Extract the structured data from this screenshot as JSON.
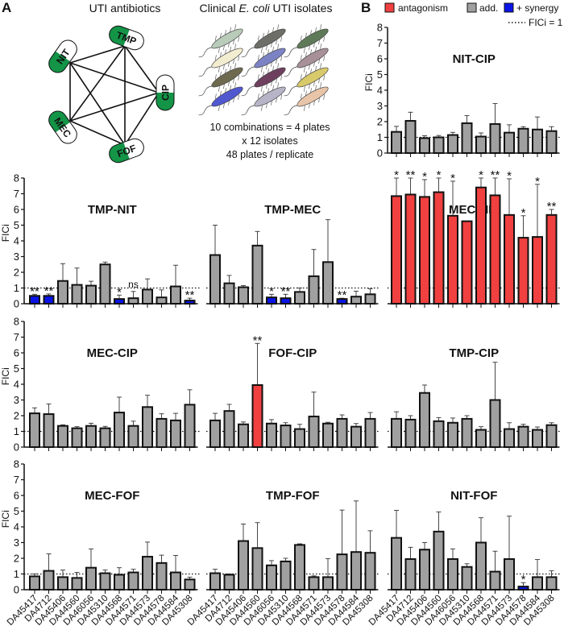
{
  "panel_a": {
    "label": "A",
    "title_antibiotics": "UTI antibiotics",
    "title_isolates_prefix": "Clinical ",
    "title_isolates_italic": "E. coli",
    "title_isolates_suffix": " UTI isolates",
    "antibiotics": [
      "TMP",
      "NIT",
      "CIP",
      "MEC",
      "FOF"
    ],
    "isolate_colors": [
      "#b9cbb9",
      "#6e6e68",
      "#5f7a58",
      "#f2edd0",
      "#7c83c4",
      "#a89098",
      "#6e6a4f",
      "#6e3f5e",
      "#d8c96b",
      "#5058d0",
      "#b8b4c8",
      "#e8c4a8"
    ],
    "plate_lines": [
      "10 combinations = 4 plates",
      "x 12 isolates",
      "48 plates / replicate"
    ],
    "pill_color": "#139447"
  },
  "panel_b": {
    "label": "B"
  },
  "legend": {
    "items": [
      {
        "label": "antagonism",
        "color": "#f04040"
      },
      {
        "label": "add.",
        "color": "#a0a0a0"
      },
      {
        "label": "+ synergy",
        "color": "#0a14e6"
      }
    ],
    "line_label": "FICi = 1"
  },
  "ylabel": "FICi",
  "yticks": [
    "0",
    "1",
    "2",
    "3",
    "4",
    "5",
    "6",
    "7",
    "8"
  ],
  "isolates": [
    "DA45417",
    "DA4712",
    "DA45406",
    "DA44560",
    "DA46056",
    "DA45310",
    "DA44568",
    "DA44571",
    "DA44573",
    "DA44578",
    "DA44584",
    "DA45308"
  ],
  "chart_data": [
    {
      "type": "bar",
      "title": "NIT-CIP",
      "ylim": [
        0,
        8
      ],
      "ylabel": "FICi",
      "values": [
        1.35,
        2.05,
        0.95,
        1.0,
        1.15,
        1.9,
        1.05,
        1.85,
        1.3,
        1.55,
        1.5,
        1.4
      ],
      "error_upper": [
        1.7,
        2.6,
        1.1,
        1.12,
        1.32,
        2.38,
        1.28,
        3.15,
        1.8,
        1.68,
        2.3,
        1.68
      ],
      "class": [
        "a",
        "a",
        "a",
        "a",
        "a",
        "a",
        "a",
        "a",
        "a",
        "a",
        "a",
        "a"
      ],
      "annotations": [
        "",
        "",
        "",
        "",
        "",
        "",
        "",
        "",
        "",
        "",
        "",
        ""
      ]
    },
    {
      "type": "bar",
      "title": "TMP-NIT",
      "ylim": [
        0,
        8
      ],
      "ylabel": "FICi",
      "values": [
        0.5,
        0.5,
        1.45,
        1.2,
        1.15,
        2.5,
        0.3,
        0.35,
        0.9,
        0.4,
        1.1,
        0.2
      ],
      "error_upper": [
        0.6,
        0.62,
        2.55,
        2.27,
        1.43,
        2.65,
        0.55,
        0.78,
        1.58,
        0.88,
        2.45,
        0.35
      ],
      "class": [
        "s",
        "s",
        "a",
        "a",
        "a",
        "a",
        "s",
        "a",
        "a",
        "a",
        "a",
        "s"
      ],
      "annotations": [
        "**",
        "**",
        "",
        "",
        "",
        "",
        "*",
        "ns",
        "",
        "",
        "",
        "**"
      ]
    },
    {
      "type": "bar",
      "title": "TMP-MEC",
      "ylim": [
        0,
        8
      ],
      "values": [
        3.1,
        1.3,
        1.05,
        3.7,
        0.4,
        0.35,
        0.75,
        1.75,
        2.65,
        0.3,
        0.45,
        0.6
      ],
      "error_upper": [
        5.0,
        1.8,
        1.15,
        4.6,
        0.6,
        0.6,
        1.0,
        3.45,
        5.35,
        0.35,
        0.8,
        0.95
      ],
      "class": [
        "a",
        "a",
        "a",
        "a",
        "s",
        "s",
        "a",
        "a",
        "a",
        "s",
        "a",
        "a"
      ],
      "annotations": [
        "",
        "",
        "",
        "",
        "*",
        "**",
        "",
        "",
        "",
        "**",
        "",
        ""
      ]
    },
    {
      "type": "bar",
      "title": "MEC-NIT",
      "ylim": [
        0,
        8
      ],
      "values": [
        6.85,
        6.95,
        6.8,
        7.1,
        5.6,
        5.25,
        7.4,
        6.9,
        5.65,
        4.2,
        4.25,
        5.65
      ],
      "error_upper": [
        8.0,
        8.0,
        7.9,
        8.0,
        7.8,
        5.25,
        8.0,
        8.0,
        7.95,
        5.6,
        7.6,
        6.0
      ],
      "class": [
        "x",
        "x",
        "x",
        "x",
        "x",
        "x",
        "x",
        "x",
        "x",
        "x",
        "x",
        "x"
      ],
      "annotations": [
        "*",
        "**",
        "*",
        "*",
        "*",
        "",
        "*",
        "**",
        "*",
        "*",
        "*",
        "**"
      ]
    },
    {
      "type": "bar",
      "title": "MEC-CIP",
      "ylim": [
        0,
        8
      ],
      "ylabel": "FICi",
      "values": [
        2.15,
        2.1,
        1.35,
        1.2,
        1.35,
        1.2,
        2.2,
        1.35,
        2.55,
        1.8,
        1.7,
        2.7
      ],
      "error_upper": [
        2.5,
        2.75,
        1.42,
        1.3,
        1.52,
        1.32,
        3.18,
        1.65,
        3.3,
        2.12,
        2.15,
        3.65
      ],
      "class": [
        "a",
        "a",
        "a",
        "a",
        "a",
        "a",
        "a",
        "a",
        "a",
        "a",
        "a",
        "a"
      ],
      "annotations": [
        "",
        "",
        "",
        "",
        "",
        "",
        "",
        "",
        "",
        "",
        "",
        ""
      ]
    },
    {
      "type": "bar",
      "title": "FOF-CIP",
      "ylim": [
        0,
        8
      ],
      "values": [
        1.7,
        2.3,
        1.45,
        3.95,
        1.5,
        1.38,
        1.15,
        1.95,
        1.5,
        1.8,
        1.3,
        1.8
      ],
      "error_upper": [
        2.15,
        2.72,
        1.6,
        6.6,
        1.75,
        1.55,
        1.45,
        3.5,
        1.58,
        2.05,
        1.5,
        2.2
      ],
      "class": [
        "a",
        "a",
        "a",
        "x",
        "a",
        "a",
        "a",
        "a",
        "a",
        "a",
        "a",
        "a"
      ],
      "annotations": [
        "",
        "",
        "",
        "**",
        "",
        "",
        "",
        "",
        "",
        "",
        "",
        ""
      ]
    },
    {
      "type": "bar",
      "title": "TMP-CIP",
      "ylim": [
        0,
        8
      ],
      "values": [
        1.8,
        1.75,
        3.45,
        1.65,
        1.55,
        1.8,
        1.1,
        3.0,
        1.15,
        1.3,
        1.1,
        1.4
      ],
      "error_upper": [
        2.25,
        2.0,
        3.95,
        1.88,
        1.85,
        2.0,
        1.3,
        5.4,
        1.55,
        1.45,
        1.28,
        1.55
      ],
      "class": [
        "a",
        "a",
        "a",
        "a",
        "a",
        "a",
        "a",
        "a",
        "a",
        "a",
        "a",
        "a"
      ],
      "annotations": [
        "",
        "",
        "",
        "",
        "",
        "",
        "",
        "",
        "",
        "",
        "",
        ""
      ]
    },
    {
      "type": "bar",
      "title": "MEC-FOF",
      "ylim": [
        0,
        8
      ],
      "ylabel": "FICi",
      "values": [
        0.85,
        1.2,
        0.8,
        0.75,
        1.4,
        1.05,
        0.95,
        1.1,
        2.1,
        1.7,
        1.1,
        0.65
      ],
      "error_upper": [
        1.0,
        2.28,
        1.25,
        1.1,
        2.6,
        1.25,
        1.4,
        1.3,
        3.03,
        2.2,
        2.18,
        0.8
      ],
      "class": [
        "a",
        "a",
        "a",
        "a",
        "a",
        "a",
        "a",
        "a",
        "a",
        "a",
        "a",
        "a"
      ],
      "annotations": [
        "",
        "",
        "",
        "",
        "",
        "",
        "",
        "",
        "",
        "",
        "",
        ""
      ]
    },
    {
      "type": "bar",
      "title": "TMP-FOF",
      "ylim": [
        0,
        8
      ],
      "values": [
        1.05,
        0.95,
        3.1,
        2.65,
        1.55,
        1.8,
        2.85,
        0.8,
        0.8,
        2.25,
        2.4,
        2.35
      ],
      "error_upper": [
        1.3,
        1.0,
        4.18,
        4.27,
        1.85,
        2.0,
        2.92,
        0.88,
        1.98,
        5.07,
        5.65,
        3.75
      ],
      "class": [
        "a",
        "a",
        "a",
        "a",
        "a",
        "a",
        "a",
        "a",
        "a",
        "a",
        "a",
        "a"
      ],
      "annotations": [
        "",
        "",
        "",
        "",
        "",
        "",
        "",
        "",
        "",
        "",
        "",
        ""
      ]
    },
    {
      "type": "bar",
      "title": "NIT-FOF",
      "ylim": [
        0,
        8
      ],
      "values": [
        3.3,
        1.95,
        2.55,
        3.7,
        1.95,
        1.45,
        3.0,
        1.15,
        1.95,
        0.2,
        0.8,
        0.8
      ],
      "error_upper": [
        5.05,
        2.7,
        3.0,
        4.95,
        2.6,
        1.65,
        4.58,
        2.45,
        4.68,
        0.45,
        1.92,
        1.2
      ],
      "class": [
        "a",
        "a",
        "a",
        "a",
        "a",
        "a",
        "a",
        "a",
        "a",
        "s",
        "a",
        "a"
      ],
      "annotations": [
        "",
        "",
        "",
        "",
        "",
        "",
        "",
        "",
        "",
        "*",
        "",
        ""
      ]
    }
  ]
}
